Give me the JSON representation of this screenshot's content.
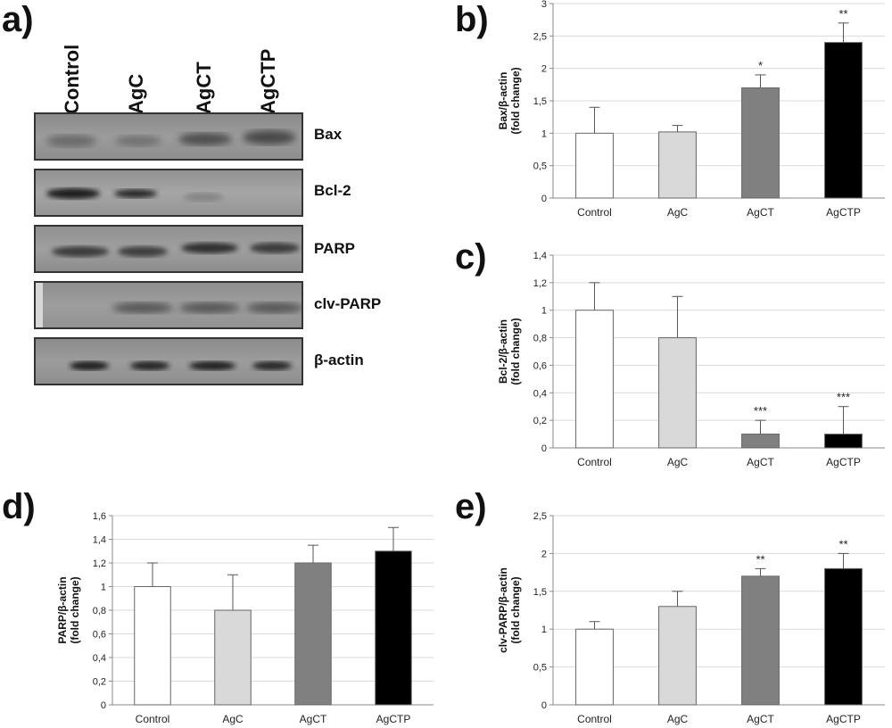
{
  "panels": {
    "a": "a)",
    "b": "b)",
    "c": "c)",
    "d": "d)",
    "e": "e)"
  },
  "blot": {
    "lanes": [
      "Control",
      "AgC",
      "AgCT",
      "AgCTP"
    ],
    "proteins": [
      "Bax",
      "Bcl-2",
      "PARP",
      "clv-PARP",
      "β-actin"
    ]
  },
  "chart_data": [
    {
      "type": "bar",
      "panel": "b",
      "categories": [
        "Control",
        "AgC",
        "AgCT",
        "AgCTP"
      ],
      "values": [
        1.0,
        1.02,
        1.7,
        2.4
      ],
      "errors": [
        0.4,
        0.1,
        0.2,
        0.3
      ],
      "significance": [
        "",
        "",
        "*",
        "**"
      ],
      "ylabel_lines": [
        "Bax/β-actin",
        "(fold change)"
      ],
      "ylim": [
        0,
        3
      ],
      "yticks": [
        "0",
        "0,5",
        "1",
        "1,5",
        "2",
        "2,5",
        "3"
      ],
      "colors": [
        "#ffffff",
        "#d9d9d9",
        "#808080",
        "#000000"
      ],
      "grid": true
    },
    {
      "type": "bar",
      "panel": "c",
      "categories": [
        "Control",
        "AgC",
        "AgCT",
        "AgCTP"
      ],
      "values": [
        1.0,
        0.8,
        0.1,
        0.1
      ],
      "errors": [
        0.2,
        0.3,
        0.1,
        0.2
      ],
      "significance": [
        "",
        "",
        "***",
        "***"
      ],
      "ylabel_lines": [
        "Bcl-2/β-actin",
        "(fold change)"
      ],
      "ylim": [
        0,
        1.4
      ],
      "yticks": [
        "0",
        "0,2",
        "0,4",
        "0,6",
        "0,8",
        "1",
        "1,2",
        "1,4"
      ],
      "colors": [
        "#ffffff",
        "#d9d9d9",
        "#808080",
        "#000000"
      ],
      "grid": true
    },
    {
      "type": "bar",
      "panel": "d",
      "categories": [
        "Control",
        "AgC",
        "AgCT",
        "AgCTP"
      ],
      "values": [
        1.0,
        0.8,
        1.2,
        1.3
      ],
      "errors": [
        0.2,
        0.3,
        0.15,
        0.2
      ],
      "significance": [
        "",
        "",
        "",
        ""
      ],
      "ylabel_lines": [
        "PARP/β-actin",
        "(fold change)"
      ],
      "ylim": [
        0,
        1.6
      ],
      "yticks": [
        "0",
        "0,2",
        "0,4",
        "0,6",
        "0,8",
        "1",
        "1,2",
        "1,4",
        "1,6"
      ],
      "colors": [
        "#ffffff",
        "#d9d9d9",
        "#808080",
        "#000000"
      ],
      "grid": true
    },
    {
      "type": "bar",
      "panel": "e",
      "categories": [
        "Control",
        "AgC",
        "AgCT",
        "AgCTP"
      ],
      "values": [
        1.0,
        1.3,
        1.7,
        1.8
      ],
      "errors": [
        0.1,
        0.2,
        0.1,
        0.2
      ],
      "significance": [
        "",
        "",
        "**",
        "**"
      ],
      "ylabel_lines": [
        "clv-PARP/β-actin",
        "(fold change)"
      ],
      "ylim": [
        0,
        2.5
      ],
      "yticks": [
        "0",
        "0,5",
        "1",
        "1,5",
        "2",
        "2,5"
      ],
      "colors": [
        "#ffffff",
        "#d9d9d9",
        "#808080",
        "#000000"
      ],
      "grid": true
    }
  ]
}
